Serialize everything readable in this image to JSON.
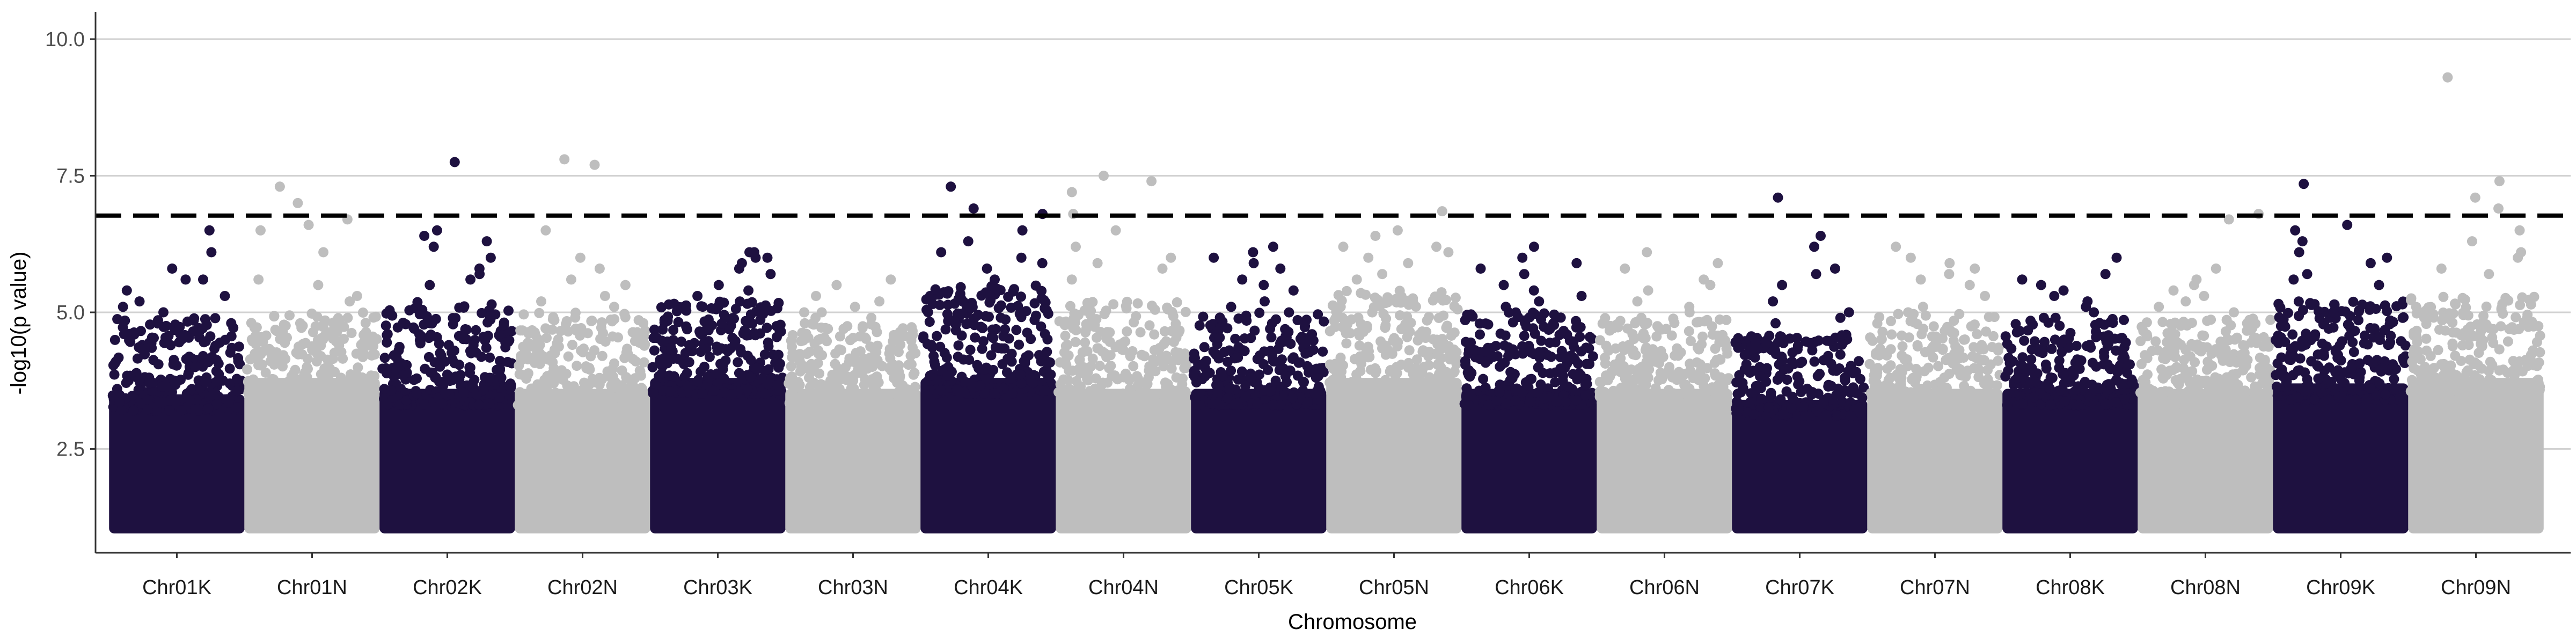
{
  "chart_data": {
    "type": "scatter",
    "subtype": "manhattan",
    "title": "",
    "xlabel": "Chromosome",
    "ylabel": "-log10(p value)",
    "ylim": [
      0.6,
      10.5
    ],
    "yticks": [
      2.5,
      5.0,
      7.5,
      10.0
    ],
    "ytick_labels": [
      "2.5",
      "5.0",
      "7.5",
      "10.0"
    ],
    "grid": "horizontal major lines only",
    "legend": "none",
    "threshold": {
      "value": 6.77,
      "style": "dashed",
      "color": "#000000"
    },
    "colors": {
      "K": "#1e1140",
      "N": "#bebebe"
    },
    "categories": [
      "Chr01K",
      "Chr01N",
      "Chr02K",
      "Chr02N",
      "Chr03K",
      "Chr03N",
      "Chr04K",
      "Chr04N",
      "Chr05K",
      "Chr05N",
      "Chr06K",
      "Chr06N",
      "Chr07K",
      "Chr07N",
      "Chr08K",
      "Chr08N",
      "Chr09K",
      "Chr09N"
    ],
    "series": [
      {
        "category": "Chr01K",
        "color": "#1e1140",
        "dense_max": 3.5,
        "upper_max": 4.9,
        "top_hits": [
          6.5,
          6.1,
          5.8,
          5.6,
          5.6,
          5.4,
          5.3,
          5.2,
          5.1,
          5.0
        ]
      },
      {
        "category": "Chr01N",
        "color": "#bebebe",
        "dense_max": 3.8,
        "upper_max": 5.0,
        "top_hits": [
          7.3,
          7.0,
          6.7,
          6.6,
          6.5,
          6.1,
          5.6,
          5.5,
          5.3,
          5.2
        ]
      },
      {
        "category": "Chr02K",
        "color": "#1e1140",
        "dense_max": 3.6,
        "upper_max": 5.2,
        "top_hits": [
          7.75,
          6.5,
          6.4,
          6.3,
          6.2,
          6.0,
          5.8,
          5.7,
          5.6,
          5.5
        ]
      },
      {
        "category": "Chr02N",
        "color": "#bebebe",
        "dense_max": 3.6,
        "upper_max": 5.0,
        "top_hits": [
          7.8,
          7.7,
          6.5,
          6.0,
          5.8,
          5.6,
          5.5,
          5.3,
          5.2,
          5.1
        ]
      },
      {
        "category": "Chr03K",
        "color": "#1e1140",
        "dense_max": 3.8,
        "upper_max": 5.2,
        "top_hits": [
          6.1,
          6.1,
          6.0,
          6.0,
          5.9,
          5.8,
          5.7,
          5.5,
          5.4,
          5.3
        ]
      },
      {
        "category": "Chr03N",
        "color": "#bebebe",
        "dense_max": 3.6,
        "upper_max": 4.8,
        "top_hits": [
          5.6,
          5.5,
          5.3,
          5.2,
          5.1,
          5.0,
          5.0,
          4.9,
          4.9,
          4.8
        ]
      },
      {
        "category": "Chr04K",
        "color": "#1e1140",
        "dense_max": 3.8,
        "upper_max": 5.5,
        "top_hits": [
          7.3,
          6.9,
          6.8,
          6.5,
          6.3,
          6.1,
          6.0,
          5.9,
          5.8,
          5.6
        ]
      },
      {
        "category": "Chr04N",
        "color": "#bebebe",
        "dense_max": 3.6,
        "upper_max": 5.2,
        "top_hits": [
          7.5,
          7.4,
          7.2,
          6.8,
          6.5,
          6.2,
          6.0,
          5.9,
          5.8,
          5.6
        ]
      },
      {
        "category": "Chr05K",
        "color": "#1e1140",
        "dense_max": 3.6,
        "upper_max": 5.0,
        "top_hits": [
          6.2,
          6.1,
          6.0,
          5.9,
          5.8,
          5.6,
          5.5,
          5.4,
          5.2,
          5.1
        ]
      },
      {
        "category": "Chr05N",
        "color": "#bebebe",
        "dense_max": 3.8,
        "upper_max": 5.4,
        "top_hits": [
          6.85,
          6.5,
          6.4,
          6.2,
          6.2,
          6.1,
          6.0,
          5.9,
          5.7,
          5.6
        ]
      },
      {
        "category": "Chr06K",
        "color": "#1e1140",
        "dense_max": 3.6,
        "upper_max": 5.0,
        "top_hits": [
          6.2,
          6.0,
          5.9,
          5.8,
          5.7,
          5.5,
          5.4,
          5.3,
          5.2,
          5.1
        ]
      },
      {
        "category": "Chr06N",
        "color": "#bebebe",
        "dense_max": 3.6,
        "upper_max": 4.9,
        "top_hits": [
          6.1,
          5.9,
          5.8,
          5.6,
          5.5,
          5.4,
          5.2,
          5.1,
          5.0,
          4.9
        ]
      },
      {
        "category": "Chr07K",
        "color": "#1e1140",
        "dense_max": 3.4,
        "upper_max": 4.6,
        "top_hits": [
          7.1,
          6.4,
          6.2,
          5.8,
          5.7,
          5.5,
          5.2,
          5.0,
          4.9,
          4.8
        ]
      },
      {
        "category": "Chr07N",
        "color": "#bebebe",
        "dense_max": 3.6,
        "upper_max": 5.0,
        "top_hits": [
          6.2,
          6.0,
          5.9,
          5.8,
          5.7,
          5.6,
          5.5,
          5.3,
          5.1,
          5.0
        ]
      },
      {
        "category": "Chr08K",
        "color": "#1e1140",
        "dense_max": 3.6,
        "upper_max": 4.9,
        "top_hits": [
          6.0,
          5.7,
          5.6,
          5.5,
          5.4,
          5.3,
          5.2,
          5.1,
          5.0,
          4.9
        ]
      },
      {
        "category": "Chr08N",
        "color": "#bebebe",
        "dense_max": 3.6,
        "upper_max": 4.9,
        "top_hits": [
          6.8,
          6.7,
          5.8,
          5.6,
          5.5,
          5.4,
          5.3,
          5.2,
          5.1,
          5.0
        ]
      },
      {
        "category": "Chr09K",
        "color": "#1e1140",
        "dense_max": 3.7,
        "upper_max": 5.2,
        "top_hits": [
          7.35,
          6.6,
          6.5,
          6.3,
          6.1,
          6.0,
          5.9,
          5.7,
          5.6,
          5.5
        ]
      },
      {
        "category": "Chr09N",
        "color": "#bebebe",
        "dense_max": 3.8,
        "upper_max": 5.3,
        "top_hits": [
          9.3,
          7.4,
          7.1,
          6.9,
          6.5,
          6.3,
          6.1,
          6.0,
          5.8,
          5.7
        ]
      }
    ]
  }
}
